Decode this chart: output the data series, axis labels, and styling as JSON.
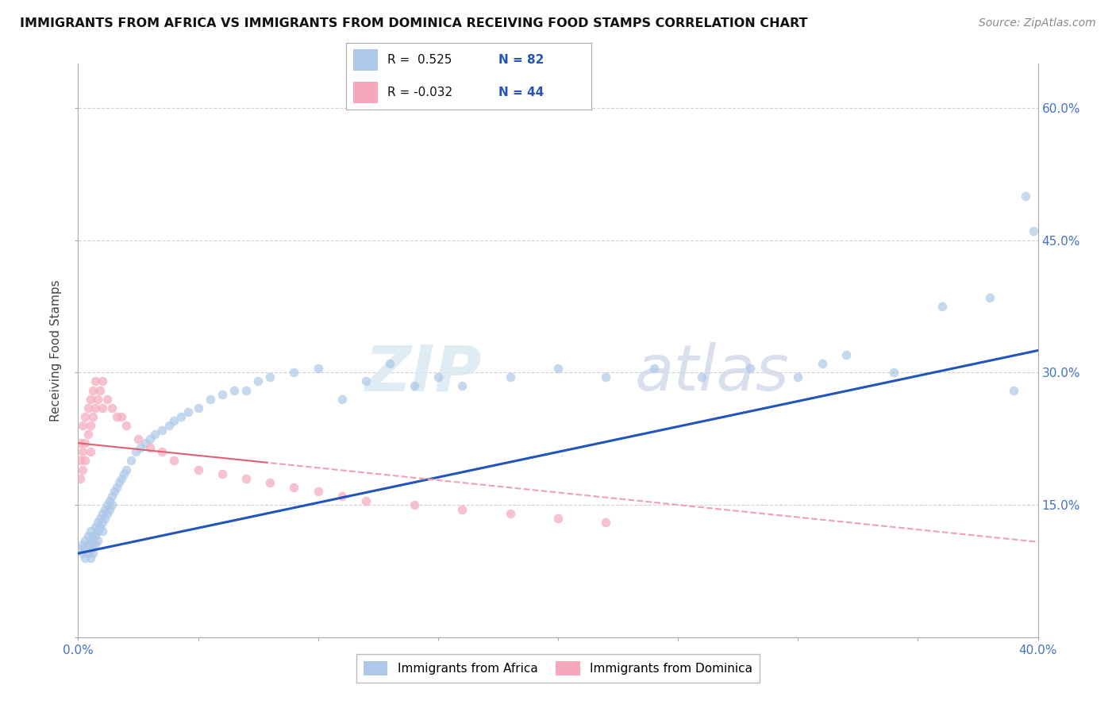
{
  "title": "IMMIGRANTS FROM AFRICA VS IMMIGRANTS FROM DOMINICA RECEIVING FOOD STAMPS CORRELATION CHART",
  "source": "Source: ZipAtlas.com",
  "ylabel": "Receiving Food Stamps",
  "xlim": [
    0.0,
    0.4
  ],
  "ylim": [
    0.0,
    0.65
  ],
  "x_tick_positions": [
    0.0,
    0.05,
    0.1,
    0.15,
    0.2,
    0.25,
    0.3,
    0.35,
    0.4
  ],
  "x_tick_labels": [
    "0.0%",
    "",
    "",
    "",
    "",
    "",
    "",
    "",
    "40.0%"
  ],
  "y_tick_positions": [
    0.0,
    0.15,
    0.3,
    0.45,
    0.6
  ],
  "y_tick_labels_right": [
    "",
    "15.0%",
    "30.0%",
    "45.0%",
    "60.0%"
  ],
  "watermark_zip": "ZIP",
  "watermark_atlas": "atlas",
  "legend_r1": "R =  0.525",
  "legend_n1": "N = 82",
  "legend_r2": "R = -0.032",
  "legend_n2": "N = 44",
  "africa_color": "#adc8e8",
  "dominica_color": "#f5a8bc",
  "trendline1_color": "#2255bb",
  "trendline2_solid_color": "#e06070",
  "trendline2_dash_color": "#f0a0b0",
  "background_color": "#ffffff",
  "scatter_alpha": 0.7,
  "scatter_size": 70,
  "africa_points_x": [
    0.001,
    0.002,
    0.002,
    0.003,
    0.003,
    0.003,
    0.004,
    0.004,
    0.004,
    0.005,
    0.005,
    0.005,
    0.005,
    0.006,
    0.006,
    0.006,
    0.007,
    0.007,
    0.007,
    0.008,
    0.008,
    0.008,
    0.009,
    0.009,
    0.01,
    0.01,
    0.01,
    0.011,
    0.011,
    0.012,
    0.012,
    0.013,
    0.013,
    0.014,
    0.014,
    0.015,
    0.016,
    0.017,
    0.018,
    0.019,
    0.02,
    0.022,
    0.024,
    0.026,
    0.028,
    0.03,
    0.032,
    0.035,
    0.038,
    0.04,
    0.043,
    0.046,
    0.05,
    0.055,
    0.06,
    0.065,
    0.07,
    0.075,
    0.08,
    0.09,
    0.1,
    0.11,
    0.12,
    0.13,
    0.14,
    0.15,
    0.16,
    0.18,
    0.2,
    0.22,
    0.24,
    0.26,
    0.28,
    0.3,
    0.31,
    0.32,
    0.34,
    0.36,
    0.38,
    0.39,
    0.395,
    0.398
  ],
  "africa_points_y": [
    0.1,
    0.105,
    0.095,
    0.11,
    0.1,
    0.09,
    0.115,
    0.105,
    0.095,
    0.12,
    0.11,
    0.1,
    0.09,
    0.115,
    0.105,
    0.095,
    0.125,
    0.115,
    0.105,
    0.13,
    0.12,
    0.11,
    0.135,
    0.125,
    0.14,
    0.13,
    0.12,
    0.145,
    0.135,
    0.15,
    0.14,
    0.155,
    0.145,
    0.16,
    0.15,
    0.165,
    0.17,
    0.175,
    0.18,
    0.185,
    0.19,
    0.2,
    0.21,
    0.215,
    0.22,
    0.225,
    0.23,
    0.235,
    0.24,
    0.245,
    0.25,
    0.255,
    0.26,
    0.27,
    0.275,
    0.28,
    0.28,
    0.29,
    0.295,
    0.3,
    0.305,
    0.27,
    0.29,
    0.31,
    0.285,
    0.295,
    0.285,
    0.295,
    0.305,
    0.295,
    0.305,
    0.295,
    0.305,
    0.295,
    0.31,
    0.32,
    0.3,
    0.375,
    0.385,
    0.28,
    0.5,
    0.46
  ],
  "dominica_points_x": [
    0.001,
    0.001,
    0.001,
    0.002,
    0.002,
    0.002,
    0.003,
    0.003,
    0.003,
    0.004,
    0.004,
    0.005,
    0.005,
    0.005,
    0.006,
    0.006,
    0.007,
    0.007,
    0.008,
    0.009,
    0.01,
    0.01,
    0.012,
    0.014,
    0.016,
    0.018,
    0.02,
    0.025,
    0.03,
    0.035,
    0.04,
    0.05,
    0.06,
    0.07,
    0.08,
    0.09,
    0.1,
    0.11,
    0.12,
    0.14,
    0.16,
    0.18,
    0.2,
    0.22
  ],
  "dominica_points_y": [
    0.18,
    0.2,
    0.22,
    0.24,
    0.21,
    0.19,
    0.25,
    0.22,
    0.2,
    0.26,
    0.23,
    0.27,
    0.24,
    0.21,
    0.28,
    0.25,
    0.29,
    0.26,
    0.27,
    0.28,
    0.29,
    0.26,
    0.27,
    0.26,
    0.25,
    0.25,
    0.24,
    0.225,
    0.215,
    0.21,
    0.2,
    0.19,
    0.185,
    0.18,
    0.175,
    0.17,
    0.165,
    0.16,
    0.155,
    0.15,
    0.145,
    0.14,
    0.135,
    0.13
  ],
  "trendline1_intercept": 0.095,
  "trendline1_slope": 0.575,
  "trendline2_intercept": 0.22,
  "trendline2_slope": -0.28
}
